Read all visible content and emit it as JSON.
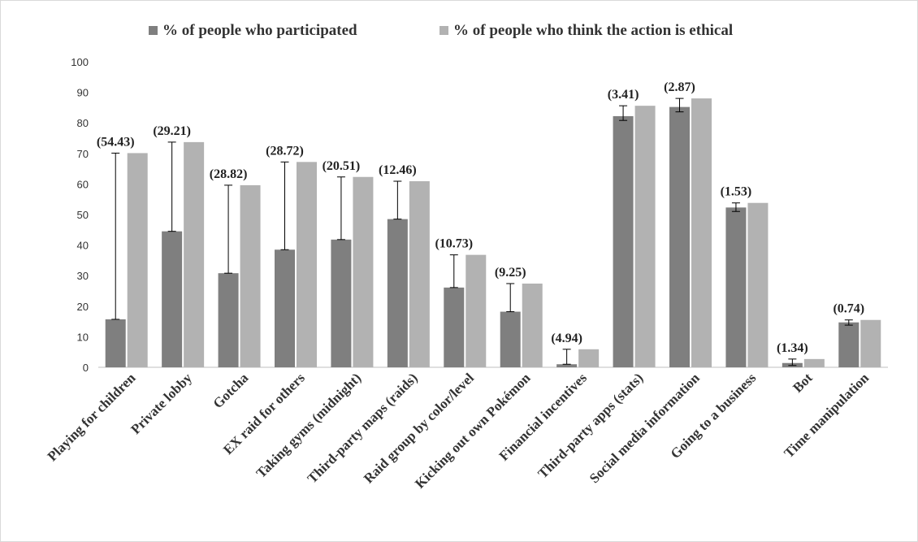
{
  "chart_data": {
    "type": "bar",
    "title": "",
    "xlabel": "",
    "ylabel": "",
    "ylim": [
      0,
      100
    ],
    "yticks": [
      0,
      10,
      20,
      30,
      40,
      50,
      60,
      70,
      80,
      90,
      100
    ],
    "grid": false,
    "legend_position": "top",
    "categories": [
      "Playing for children",
      "Private lobby",
      "Gotcha",
      "EX raid for others",
      "Taking gyms (midnight)",
      "Third-party maps (raids)",
      "Raid group by color/level",
      "Kicking out own Pokémon",
      "Financial incentives",
      "Third-party apps (stats)",
      "Social media information",
      "Going to a business",
      "Bot",
      "Time manipulation"
    ],
    "series": [
      {
        "name": "% of people who participated",
        "color": "#7f7f7f",
        "values": [
          15.7,
          44.5,
          30.8,
          38.5,
          41.8,
          48.5,
          26.1,
          18.2,
          1.0,
          82.2,
          85.2,
          52.3,
          1.4,
          14.7
        ],
        "error_upper": [
          70.1,
          73.7,
          59.6,
          67.2,
          62.3,
          60.9,
          36.8,
          27.4,
          5.9,
          85.6,
          88.0,
          53.8,
          2.7,
          15.5
        ],
        "error_lower": [
          15.7,
          44.5,
          30.8,
          38.5,
          41.8,
          48.5,
          26.1,
          18.2,
          1.0,
          80.8,
          83.6,
          51.0,
          0.6,
          13.8
        ]
      },
      {
        "name": "% of people who think the action is ethical",
        "color": "#b2b2b2",
        "values": [
          70.1,
          73.7,
          59.6,
          67.2,
          62.3,
          60.9,
          36.8,
          27.4,
          5.9,
          85.6,
          88.0,
          53.8,
          2.7,
          15.5
        ]
      }
    ],
    "data_labels": [
      "(54.43)",
      "(29.21)",
      "(28.82)",
      "(28.72)",
      "(20.51)",
      "(12.46)",
      "(10.73)",
      "(9.25)",
      "(4.94)",
      "(3.41)",
      "(2.87)",
      "(1.53)",
      "(1.34)",
      "(0.74)"
    ]
  }
}
